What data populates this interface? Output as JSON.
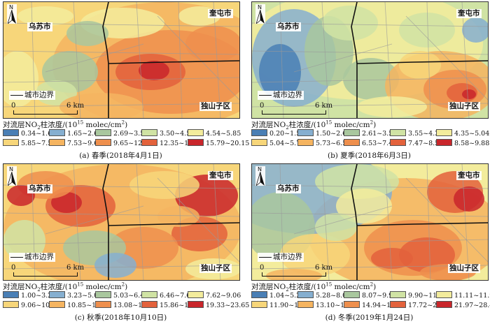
{
  "labels": {
    "north": "N",
    "wusu": "乌苏市",
    "kuitun": "奎屯市",
    "dushanzi": "独山子区",
    "boundary": "城市边界",
    "scale_zero": "0",
    "scale_dist": "6 km"
  },
  "legend_title": {
    "prefix": "对流层NO",
    "sub": "2",
    "middle": "柱浓度/(10",
    "sup": "15",
    "unit_pre": " molec/cm",
    "unit_sup": "2",
    "suffix": ")"
  },
  "panels": [
    {
      "caption": "(a)  春季(2018年4月1日)",
      "classes": [
        "0.34~1.65",
        "1.65~2.69",
        "2.69~3.50",
        "3.50~4.54",
        "4.54~5.85",
        "5.85~7.53",
        "7.53~9.65",
        "9.65~12.35",
        "12.35~15.79",
        "15.79~20.15"
      ]
    },
    {
      "caption": "(b)  夏季(2018年6月3日)",
      "classes": [
        "0.20~1.50",
        "1.50~2.61",
        "2.61~3.55",
        "3.55~4.35",
        "4.35~5.04",
        "5.04~5.73",
        "5.73~6.53",
        "6.53~7.47",
        "7.47~8.58",
        "8.58~9.88"
      ]
    },
    {
      "caption": "(c)  秋季(2018年10月10日)",
      "classes": [
        "1.00~3.23",
        "3.23~5.03",
        "5.03~6.46",
        "6.46~7.62",
        "7.62~9.06",
        "9.06~10.85",
        "10.85~13.08",
        "13.08~15.86",
        "15.86~19.33",
        "19.33~23.65"
      ]
    },
    {
      "caption": "(d)  冬季(2019年1月24日)",
      "classes": [
        "1.04~5.28",
        "5.28~8.07",
        "8.07~9.90",
        "9.90~11.11",
        "11.11~11.90",
        "11.90~13.10",
        "13.10~14.94",
        "14.94~17.72",
        "17.72~21.97",
        "21.97~28.43"
      ]
    }
  ],
  "colors": [
    "#4a7fb5",
    "#86afd0",
    "#a9c79e",
    "#d0e3a4",
    "#f3ec9c",
    "#f7d67a",
    "#f5b460",
    "#ee8f4d",
    "#e3623c",
    "#c9262b"
  ]
}
